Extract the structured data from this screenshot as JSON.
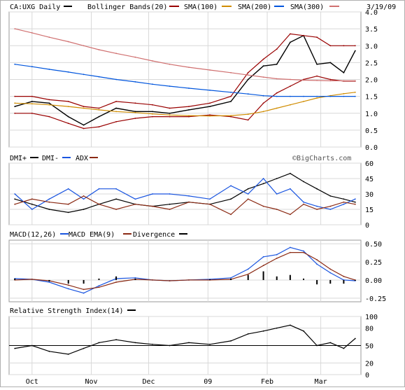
{
  "header": {
    "symbol_label": "CA:UXG Daily",
    "date": "3/19/09"
  },
  "colors": {
    "price": "#000000",
    "bollinger": "#990000",
    "sma100": "#d08c00",
    "sma200": "#0055dd",
    "sma300": "#d07070",
    "dmi_plus": "#000000",
    "dmi_minus": "#1a55e0",
    "adx": "#8b2a14",
    "macd": "#1a55e0",
    "macd_ema": "#8b2a14",
    "divergence": "#000000",
    "rsi": "#000000"
  },
  "watermark": "©BigCharts.com",
  "x_labels": [
    "Oct",
    "Nov",
    "Dec",
    "09",
    "Feb",
    "Mar"
  ],
  "chart_data": [
    {
      "type": "line",
      "panel": "price",
      "legend": [
        "CA:UXG Daily",
        "Bollinger Bands(20)",
        "SMA(100)",
        "SMA(200)",
        "SMA(300)"
      ],
      "ylim": [
        0,
        4
      ],
      "yticks": [
        "4.0",
        "3.5",
        "3.0",
        "2.5",
        "2.0",
        "1.5",
        "1.0",
        "0.5",
        "0.0"
      ],
      "x": [
        "2008-09-22",
        "2008-10-01",
        "2008-10-10",
        "2008-10-20",
        "2008-10-28",
        "2008-11-05",
        "2008-11-14",
        "2008-11-24",
        "2008-12-03",
        "2008-12-12",
        "2008-12-22",
        "2009-01-02",
        "2009-01-13",
        "2009-01-22",
        "2009-01-30",
        "2009-02-06",
        "2009-02-13",
        "2009-02-20",
        "2009-02-27",
        "2009-03-06",
        "2009-03-13",
        "2009-03-19"
      ],
      "series": [
        {
          "name": "CA:UXG Daily",
          "values": [
            1.2,
            1.35,
            1.3,
            0.9,
            0.65,
            0.9,
            1.15,
            1.05,
            1.05,
            1.0,
            1.1,
            1.2,
            1.35,
            2.0,
            2.4,
            2.45,
            3.1,
            3.3,
            2.45,
            2.5,
            2.2,
            2.85
          ]
        },
        {
          "name": "Bollinger Bands(20) upper",
          "values": [
            1.5,
            1.5,
            1.4,
            1.35,
            1.2,
            1.15,
            1.35,
            1.3,
            1.25,
            1.15,
            1.2,
            1.3,
            1.5,
            2.2,
            2.6,
            2.9,
            3.35,
            3.3,
            3.25,
            3.0,
            3.0,
            3.0
          ]
        },
        {
          "name": "Bollinger Bands(20) lower",
          "values": [
            1.0,
            1.0,
            0.9,
            0.7,
            0.55,
            0.6,
            0.75,
            0.85,
            0.9,
            0.9,
            0.9,
            0.95,
            0.9,
            0.8,
            1.3,
            1.6,
            1.8,
            2.0,
            2.1,
            2.0,
            1.95,
            1.95
          ]
        },
        {
          "name": "SMA(100)",
          "values": [
            1.3,
            1.28,
            1.25,
            1.2,
            1.15,
            1.1,
            1.05,
            1.02,
            0.98,
            0.95,
            0.93,
            0.92,
            0.93,
            0.97,
            1.05,
            1.15,
            1.25,
            1.35,
            1.45,
            1.52,
            1.58,
            1.62
          ]
        },
        {
          "name": "SMA(200)",
          "values": [
            2.45,
            2.38,
            2.3,
            2.22,
            2.15,
            2.08,
            2.0,
            1.93,
            1.86,
            1.8,
            1.74,
            1.68,
            1.62,
            1.57,
            1.52,
            1.5,
            1.5,
            1.5,
            1.5,
            1.5,
            1.5,
            1.5
          ]
        },
        {
          "name": "SMA(300)",
          "values": [
            3.5,
            3.38,
            3.25,
            3.12,
            3.0,
            2.88,
            2.77,
            2.66,
            2.55,
            2.45,
            2.36,
            2.28,
            2.2,
            2.13,
            2.07,
            2.02,
            2.0,
            1.98,
            1.97,
            1.96,
            1.96,
            1.96
          ]
        }
      ]
    },
    {
      "type": "line",
      "panel": "dmi",
      "legend": [
        "DMI+",
        "DMI-",
        "ADX"
      ],
      "ylim": [
        0,
        60
      ],
      "yticks": [
        "60",
        "45",
        "30",
        "15",
        "0"
      ],
      "x": [
        "2008-09-22",
        "2008-10-01",
        "2008-10-10",
        "2008-10-20",
        "2008-10-28",
        "2008-11-05",
        "2008-11-14",
        "2008-11-24",
        "2008-12-03",
        "2008-12-12",
        "2008-12-22",
        "2009-01-02",
        "2009-01-13",
        "2009-01-22",
        "2009-01-30",
        "2009-02-06",
        "2009-02-13",
        "2009-02-20",
        "2009-02-27",
        "2009-03-06",
        "2009-03-13",
        "2009-03-19"
      ],
      "series": [
        {
          "name": "DMI+",
          "values": [
            25,
            20,
            15,
            12,
            15,
            20,
            25,
            20,
            18,
            20,
            22,
            20,
            25,
            35,
            40,
            45,
            50,
            42,
            35,
            28,
            25,
            22
          ]
        },
        {
          "name": "DMI-",
          "values": [
            30,
            15,
            25,
            35,
            25,
            35,
            35,
            25,
            30,
            30,
            28,
            25,
            38,
            30,
            45,
            30,
            35,
            22,
            18,
            15,
            20,
            25
          ]
        },
        {
          "name": "ADX",
          "values": [
            20,
            25,
            22,
            20,
            28,
            20,
            15,
            20,
            18,
            15,
            22,
            20,
            10,
            25,
            18,
            15,
            10,
            20,
            15,
            18,
            22,
            20
          ]
        }
      ]
    },
    {
      "type": "line",
      "panel": "macd",
      "legend": [
        "MACD(12,26)",
        "MACD EMA(9)",
        "Divergence"
      ],
      "ylim": [
        -0.3,
        0.55
      ],
      "yticks": [
        "0.50",
        "0.25",
        "0.00",
        "-0.25"
      ],
      "x": [
        "2008-09-22",
        "2008-10-01",
        "2008-10-10",
        "2008-10-20",
        "2008-10-28",
        "2008-11-05",
        "2008-11-14",
        "2008-11-24",
        "2008-12-03",
        "2008-12-12",
        "2008-12-22",
        "2009-01-02",
        "2009-01-13",
        "2009-01-22",
        "2009-01-30",
        "2009-02-06",
        "2009-02-13",
        "2009-02-20",
        "2009-02-27",
        "2009-03-06",
        "2009-03-13",
        "2009-03-19"
      ],
      "series": [
        {
          "name": "MACD(12,26)",
          "values": [
            0.02,
            0.01,
            -0.03,
            -0.12,
            -0.18,
            -0.08,
            0.02,
            0.03,
            0.0,
            -0.01,
            0.0,
            0.01,
            0.03,
            0.15,
            0.32,
            0.35,
            0.45,
            0.4,
            0.22,
            0.1,
            0.0,
            -0.01
          ]
        },
        {
          "name": "MACD EMA(9)",
          "values": [
            0.0,
            0.01,
            -0.01,
            -0.07,
            -0.13,
            -0.1,
            -0.03,
            0.01,
            0.0,
            -0.01,
            0.0,
            0.0,
            0.01,
            0.08,
            0.2,
            0.3,
            0.38,
            0.38,
            0.28,
            0.15,
            0.05,
            0.0
          ]
        },
        {
          "name": "Divergence",
          "values": [
            0.02,
            0.0,
            -0.02,
            -0.05,
            -0.05,
            0.02,
            0.05,
            0.02,
            0.0,
            0.0,
            0.0,
            0.01,
            0.02,
            0.07,
            0.12,
            0.05,
            0.07,
            0.02,
            -0.06,
            -0.05,
            -0.05,
            -0.01
          ]
        }
      ]
    },
    {
      "type": "line",
      "panel": "rsi",
      "legend": [
        "Relative Strength Index(14)"
      ],
      "ylim": [
        0,
        100
      ],
      "yticks": [
        "100",
        "80",
        "50",
        "20",
        "0"
      ],
      "reference_line": 50,
      "x": [
        "2008-09-22",
        "2008-10-01",
        "2008-10-10",
        "2008-10-20",
        "2008-10-28",
        "2008-11-05",
        "2008-11-14",
        "2008-11-24",
        "2008-12-03",
        "2008-12-12",
        "2008-12-22",
        "2009-01-02",
        "2009-01-13",
        "2009-01-22",
        "2009-01-30",
        "2009-02-06",
        "2009-02-13",
        "2009-02-20",
        "2009-02-27",
        "2009-03-06",
        "2009-03-13",
        "2009-03-19"
      ],
      "series": [
        {
          "name": "Relative Strength Index(14)",
          "values": [
            45,
            50,
            40,
            35,
            45,
            55,
            60,
            55,
            52,
            50,
            55,
            52,
            58,
            70,
            75,
            80,
            85,
            75,
            50,
            55,
            45,
            62
          ]
        }
      ]
    }
  ]
}
